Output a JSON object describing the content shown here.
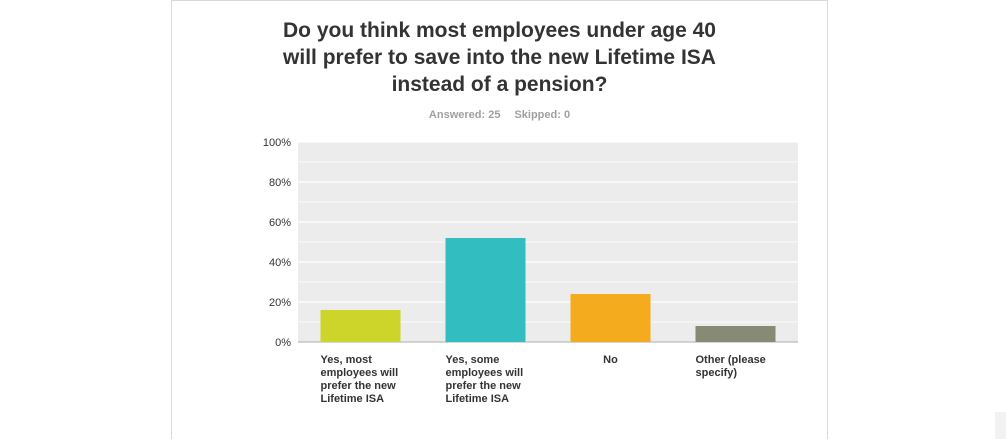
{
  "page": {
    "title_lines": [
      "Do you think most employees under age 40",
      "will prefer to save into the new Lifetime ISA",
      "instead of a pension?"
    ],
    "answered_label": "Answered: 25",
    "skipped_label": "Skipped: 0"
  },
  "chart_data": {
    "type": "bar",
    "title": "Do you think most employees under age 40 will prefer to save into the new Lifetime ISA instead of a pension?",
    "categories": [
      "Yes, most employees will prefer the new Lifetime ISA",
      "Yes, some employees will prefer the new Lifetime ISA",
      "No",
      "Other (please specify)"
    ],
    "category_label_lines": [
      [
        "Yes, most",
        "employees will",
        "prefer the new",
        "Lifetime ISA"
      ],
      [
        "Yes, some",
        "employees will",
        "prefer the new",
        "Lifetime ISA"
      ],
      [
        "No"
      ],
      [
        "Other (please",
        "specify)"
      ]
    ],
    "values": [
      16,
      52,
      24,
      8
    ],
    "colors": [
      "#cdd52a",
      "#32bec0",
      "#f5ab1e",
      "#878a74"
    ],
    "ylim": [
      0,
      100
    ],
    "yticks": [
      "0%",
      "20%",
      "40%",
      "60%",
      "80%",
      "100%"
    ],
    "ytick_values": [
      0,
      20,
      40,
      60,
      80,
      100
    ],
    "xlabel": "",
    "ylabel": "",
    "grid": true,
    "plot_background": "#ececec"
  }
}
